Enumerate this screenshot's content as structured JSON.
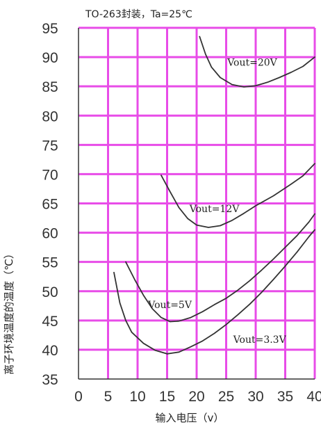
{
  "chart_data": {
    "type": "line",
    "title": "TO-263封装，Ta=25℃",
    "xlabel": "输入电压（v）",
    "ylabel": "离子环境温度的温度（℃）",
    "xlim": [
      0,
      40
    ],
    "ylim": [
      35,
      95
    ],
    "x_ticks": [
      0,
      5,
      10,
      15,
      20,
      25,
      30,
      35,
      40
    ],
    "y_ticks": [
      35,
      40,
      45,
      50,
      55,
      60,
      65,
      70,
      75,
      80,
      85,
      90,
      95
    ],
    "grid": true,
    "series": [
      {
        "name": "Vout=20V",
        "points": [
          [
            20.5,
            93.5
          ],
          [
            21.5,
            90.5
          ],
          [
            22.5,
            88.3
          ],
          [
            24,
            86.5
          ],
          [
            26,
            85.3
          ],
          [
            28,
            84.9
          ],
          [
            30,
            85.1
          ],
          [
            32,
            85.7
          ],
          [
            34,
            86.5
          ],
          [
            36,
            87.4
          ],
          [
            38,
            88.4
          ],
          [
            40,
            90
          ]
        ]
      },
      {
        "name": "Vout=12V",
        "points": [
          [
            14,
            69.8
          ],
          [
            15.5,
            67
          ],
          [
            17,
            64.3
          ],
          [
            18.5,
            62.4
          ],
          [
            20,
            61.3
          ],
          [
            22,
            60.9
          ],
          [
            24,
            61.2
          ],
          [
            26,
            62.1
          ],
          [
            28,
            63.3
          ],
          [
            30,
            64.6
          ],
          [
            33,
            66.3
          ],
          [
            36,
            68.3
          ],
          [
            38,
            69.7
          ],
          [
            40,
            71.8
          ]
        ]
      },
      {
        "name": "Vout=5V",
        "points": [
          [
            8,
            55
          ],
          [
            9.5,
            52
          ],
          [
            11,
            49.3
          ],
          [
            12.5,
            47
          ],
          [
            14,
            45.5
          ],
          [
            15.5,
            44.8
          ],
          [
            17,
            44.9
          ],
          [
            19,
            45.5
          ],
          [
            21,
            46.5
          ],
          [
            23,
            47.7
          ],
          [
            25,
            48.8
          ],
          [
            27,
            50.2
          ],
          [
            29,
            51.8
          ],
          [
            31,
            53.6
          ],
          [
            33,
            55.5
          ],
          [
            35,
            57.5
          ],
          [
            37,
            59.5
          ],
          [
            39,
            61.8
          ],
          [
            40,
            63.2
          ]
        ]
      },
      {
        "name": "Vout=3.3V",
        "points": [
          [
            6,
            53.2
          ],
          [
            7,
            48
          ],
          [
            8,
            45
          ],
          [
            9,
            43
          ],
          [
            11,
            41.1
          ],
          [
            13,
            39.9
          ],
          [
            15,
            39.3
          ],
          [
            17,
            39.6
          ],
          [
            19,
            40.5
          ],
          [
            21,
            41.5
          ],
          [
            23,
            42.8
          ],
          [
            25,
            44.3
          ],
          [
            27,
            46
          ],
          [
            29,
            47.8
          ],
          [
            31,
            49.8
          ],
          [
            33,
            52
          ],
          [
            35,
            54.3
          ],
          [
            37,
            56.7
          ],
          [
            39,
            59.3
          ],
          [
            40,
            60.5
          ]
        ]
      }
    ],
    "series_labels": [
      {
        "series": "Vout=20V",
        "text": "Vout=20V",
        "x": 25.2,
        "y": 88.5
      },
      {
        "series": "Vout=12V",
        "text": "Vout=12V",
        "x": 18.8,
        "y": 63.5
      },
      {
        "series": "Vout=5V",
        "text": "Vout=5V",
        "x": 11.8,
        "y": 47.1
      },
      {
        "series": "Vout=3.3V",
        "text": "Vout=3.3V",
        "x": 26.2,
        "y": 41.2
      }
    ]
  }
}
